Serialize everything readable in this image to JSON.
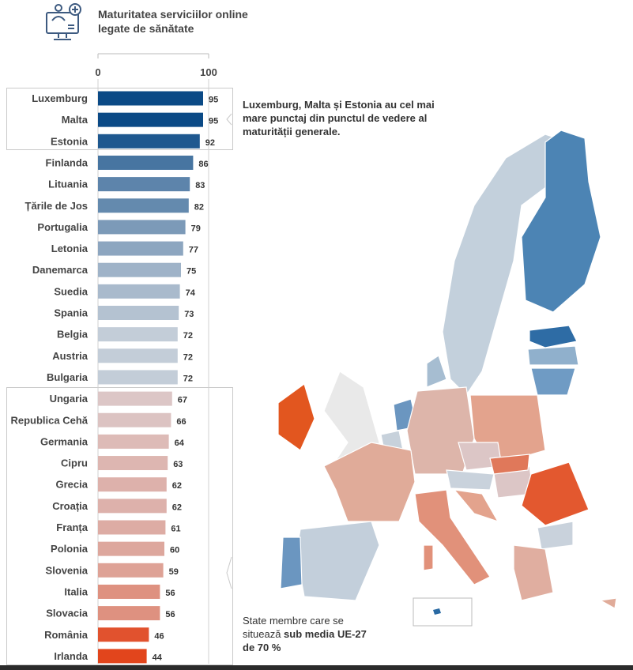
{
  "chart_data": {
    "type": "bar",
    "orientation": "horizontal",
    "title": "Maturitatea serviciilor online legate de sănătate",
    "xlim": [
      0,
      100
    ],
    "x_ticks": [
      "0",
      "100"
    ],
    "categories": [
      "Luxemburg",
      "Malta",
      "Estonia",
      "Finlanda",
      "Lituania",
      "Țările de Jos",
      "Portugalia",
      "Letonia",
      "Danemarca",
      "Suedia",
      "Spania",
      "Belgia",
      "Austria",
      "Bulgaria",
      "Ungaria",
      "Republica Cehă",
      "Germania",
      "Cipru",
      "Grecia",
      "Croația",
      "Franța",
      "Polonia",
      "Slovenia",
      "Italia",
      "Slovacia",
      "România",
      "Irlanda"
    ],
    "values": [
      95,
      95,
      92,
      86,
      83,
      82,
      79,
      77,
      75,
      74,
      73,
      72,
      72,
      72,
      67,
      66,
      64,
      63,
      62,
      62,
      61,
      60,
      59,
      56,
      56,
      46,
      44
    ],
    "color_scale": {
      "low": "#e2451c",
      "mid_low": "#dcc6c6",
      "mid_high": "#c3cdd8",
      "high": "#0b4a86"
    },
    "annotations": {
      "top": "Luxemburg, Malta și Estonia au cel mai mare punctaj din punctul de vedere al maturității generale.",
      "bottom_prefix": "State membre care se situează ",
      "bottom_bold": "sub media UE-27 de 70 %"
    }
  },
  "icons": {
    "header": "doctor-monitor-icon"
  }
}
